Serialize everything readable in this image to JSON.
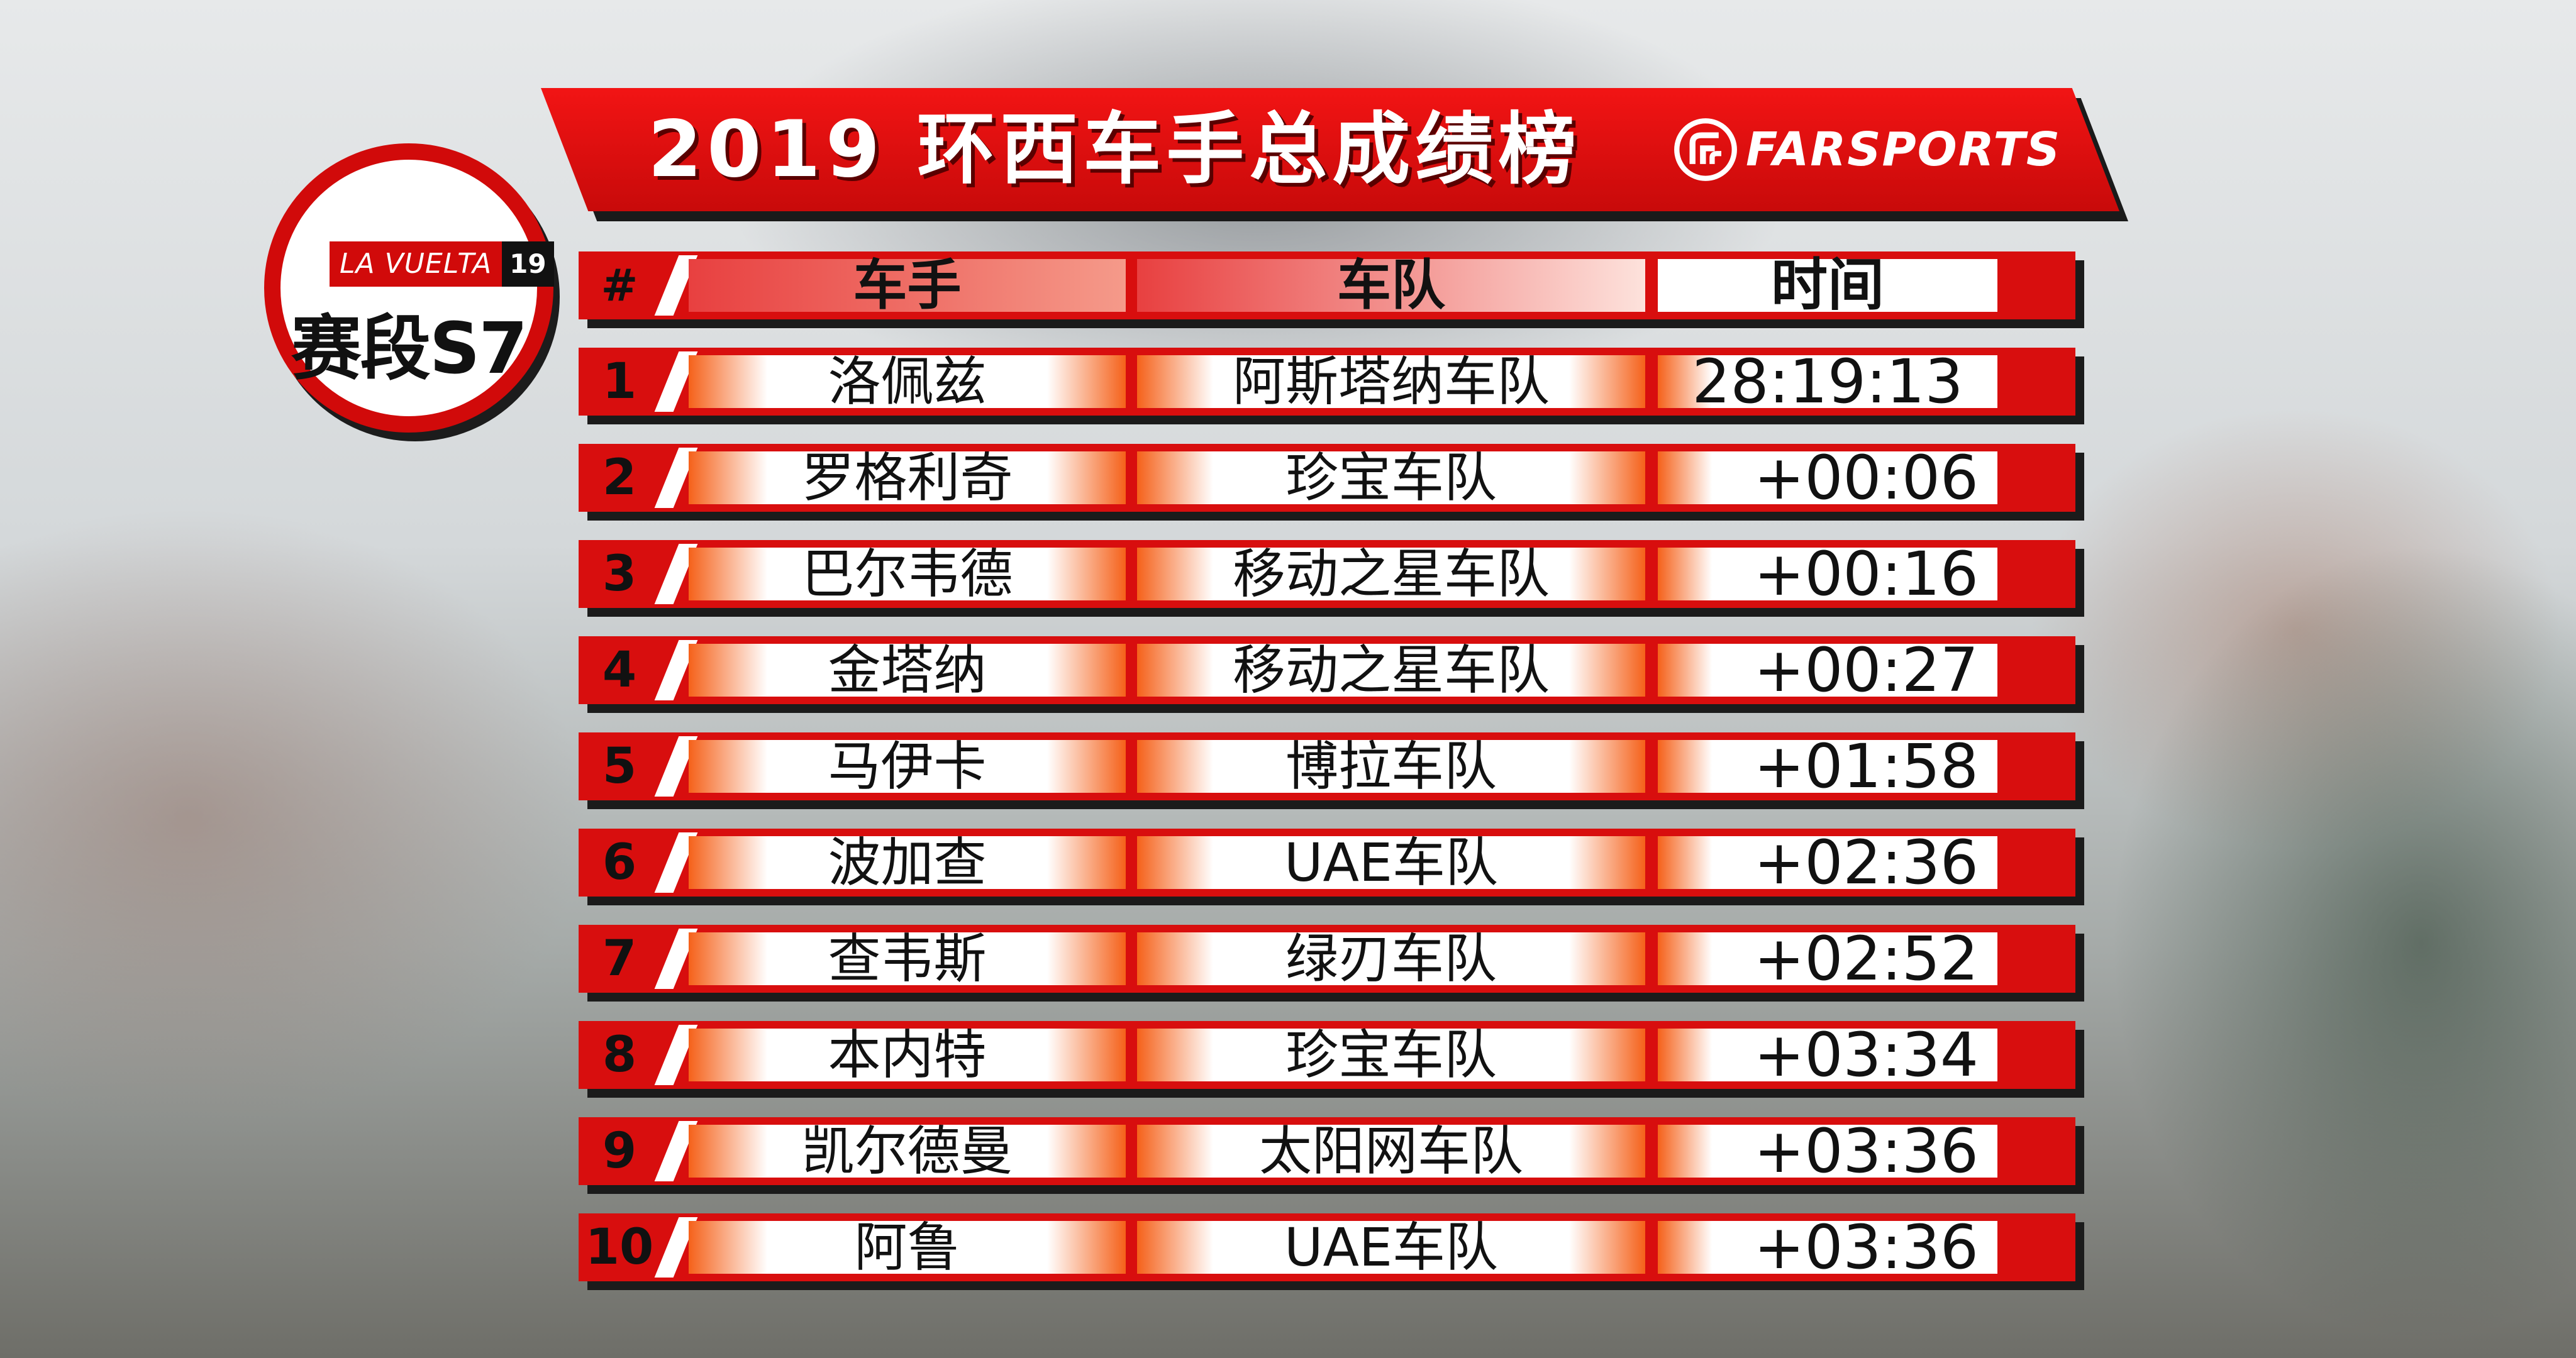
{
  "title": "2019 环西车手总成绩榜",
  "brand": {
    "name": "FARSPORTS",
    "logo_icon": "farsports-logo-icon"
  },
  "badge": {
    "race": "LA VUELTA",
    "year": "19",
    "stage": "赛段S7"
  },
  "table": {
    "headers": {
      "rank": "#",
      "rider": "车手",
      "team": "车队",
      "time": "时间"
    },
    "rows": [
      {
        "rank": "1",
        "rider": "洛佩兹",
        "team": "阿斯塔纳车队",
        "time": "28:19:13"
      },
      {
        "rank": "2",
        "rider": "罗格利奇",
        "team": "珍宝车队",
        "time": "+00:06"
      },
      {
        "rank": "3",
        "rider": "巴尔韦德",
        "team": "移动之星车队",
        "time": "+00:16"
      },
      {
        "rank": "4",
        "rider": "金塔纳",
        "team": "移动之星车队",
        "time": "+00:27"
      },
      {
        "rank": "5",
        "rider": "马伊卡",
        "team": "博拉车队",
        "time": "+01:58"
      },
      {
        "rank": "6",
        "rider": "波加查",
        "team": "UAE车队",
        "time": "+02:36"
      },
      {
        "rank": "7",
        "rider": "查韦斯",
        "team": "绿刃车队",
        "time": "+02:52"
      },
      {
        "rank": "8",
        "rider": "本内特",
        "team": "珍宝车队",
        "time": "+03:34"
      },
      {
        "rank": "9",
        "rider": "凯尔德曼",
        "team": "太阳网车队",
        "time": "+03:36"
      },
      {
        "rank": "10",
        "rider": "阿鲁",
        "team": "UAE车队",
        "time": "+03:36"
      }
    ]
  },
  "colors": {
    "accent": "#d80e0e",
    "cell": "#ffffff",
    "cell_edge": "#f5611a",
    "shadow": "#1b1b1b"
  }
}
